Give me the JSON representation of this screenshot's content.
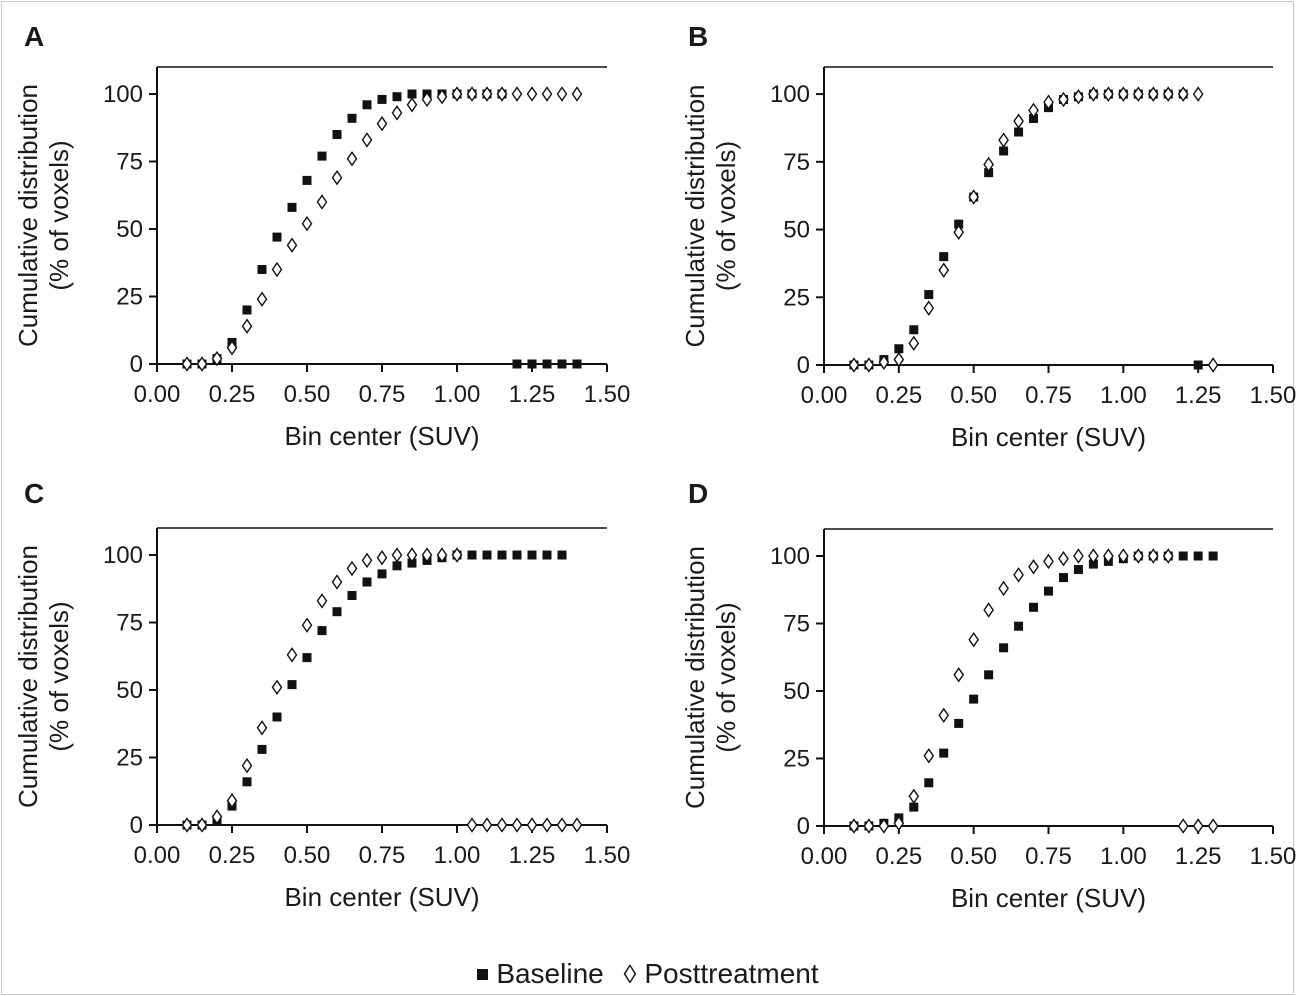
{
  "legend": {
    "baseline": "Baseline",
    "posttreatment": "Posttreatment",
    "baseline_marker": "filled-square",
    "posttreatment_marker": "open-diamond"
  },
  "chart_data": [
    {
      "panel": "A",
      "type": "scatter",
      "xlabel": "Bin center (SUV)",
      "ylabel": "Cumulative distribution\n(% of voxels)",
      "xlim": [
        0,
        1.5
      ],
      "ylim": [
        0,
        110
      ],
      "xticks": [
        "0.00",
        "0.25",
        "0.50",
        "0.75",
        "1.00",
        "1.25",
        "1.50"
      ],
      "yticks": [
        "0",
        "25",
        "50",
        "75",
        "100"
      ],
      "series": [
        {
          "name": "Baseline",
          "marker": "square",
          "x": [
            0.1,
            0.15,
            0.2,
            0.25,
            0.3,
            0.35,
            0.4,
            0.45,
            0.5,
            0.55,
            0.6,
            0.65,
            0.7,
            0.75,
            0.8,
            0.85,
            0.9,
            0.95,
            1.0,
            1.05,
            1.1,
            1.15,
            1.2,
            1.25,
            1.3,
            1.35,
            1.4
          ],
          "y": [
            0,
            0,
            2,
            8,
            20,
            35,
            47,
            58,
            68,
            77,
            85,
            91,
            96,
            98,
            99,
            100,
            100,
            100,
            100,
            100,
            100,
            100,
            0,
            0,
            0,
            0,
            0
          ]
        },
        {
          "name": "Posttreatment",
          "marker": "diamond",
          "x": [
            0.1,
            0.15,
            0.2,
            0.25,
            0.3,
            0.35,
            0.4,
            0.45,
            0.5,
            0.55,
            0.6,
            0.65,
            0.7,
            0.75,
            0.8,
            0.85,
            0.9,
            0.95,
            1.0,
            1.05,
            1.1,
            1.15,
            1.2,
            1.25,
            1.3,
            1.35,
            1.4
          ],
          "y": [
            0,
            0,
            2,
            6,
            14,
            24,
            35,
            44,
            52,
            60,
            69,
            76,
            83,
            89,
            93,
            96,
            98,
            99,
            100,
            100,
            100,
            100,
            100,
            100,
            100,
            100,
            100
          ]
        }
      ]
    },
    {
      "panel": "B",
      "type": "scatter",
      "xlabel": "Bin center (SUV)",
      "ylabel": "Cumulative distribution\n(% of voxels)",
      "xlim": [
        0,
        1.5
      ],
      "ylim": [
        0,
        110
      ],
      "xticks": [
        "0.00",
        "0.25",
        "0.50",
        "0.75",
        "1.00",
        "1.25",
        "1.50"
      ],
      "yticks": [
        "0",
        "25",
        "50",
        "75",
        "100"
      ],
      "series": [
        {
          "name": "Baseline",
          "marker": "square",
          "x": [
            0.1,
            0.15,
            0.2,
            0.25,
            0.3,
            0.35,
            0.4,
            0.45,
            0.5,
            0.55,
            0.6,
            0.65,
            0.7,
            0.75,
            0.8,
            0.85,
            0.9,
            0.95,
            1.0,
            1.05,
            1.1,
            1.15,
            1.2,
            1.25
          ],
          "y": [
            0,
            0,
            2,
            6,
            13,
            26,
            40,
            52,
            62,
            71,
            79,
            86,
            91,
            95,
            98,
            99,
            100,
            100,
            100,
            100,
            100,
            100,
            100,
            0
          ]
        },
        {
          "name": "Posttreatment",
          "marker": "diamond",
          "x": [
            0.1,
            0.15,
            0.2,
            0.25,
            0.3,
            0.35,
            0.4,
            0.45,
            0.5,
            0.55,
            0.6,
            0.65,
            0.7,
            0.75,
            0.8,
            0.85,
            0.9,
            0.95,
            1.0,
            1.05,
            1.1,
            1.15,
            1.2,
            1.25,
            1.3
          ],
          "y": [
            0,
            0,
            1,
            2,
            8,
            21,
            35,
            49,
            62,
            74,
            83,
            90,
            94,
            97,
            98,
            99,
            100,
            100,
            100,
            100,
            100,
            100,
            100,
            100,
            0
          ]
        }
      ]
    },
    {
      "panel": "C",
      "type": "scatter",
      "xlabel": "Bin center (SUV)",
      "ylabel": "Cumulative distribution\n(% of voxels)",
      "xlim": [
        0,
        1.5
      ],
      "ylim": [
        0,
        110
      ],
      "xticks": [
        "0.00",
        "0.25",
        "0.50",
        "0.75",
        "1.00",
        "1.25",
        "1.50"
      ],
      "yticks": [
        "0",
        "25",
        "50",
        "75",
        "100"
      ],
      "series": [
        {
          "name": "Baseline",
          "marker": "square",
          "x": [
            0.1,
            0.15,
            0.2,
            0.25,
            0.3,
            0.35,
            0.4,
            0.45,
            0.5,
            0.55,
            0.6,
            0.65,
            0.7,
            0.75,
            0.8,
            0.85,
            0.9,
            0.95,
            1.0,
            1.05,
            1.1,
            1.15,
            1.2,
            1.25,
            1.3,
            1.35
          ],
          "y": [
            0,
            0,
            2,
            7,
            16,
            28,
            40,
            52,
            62,
            72,
            79,
            85,
            90,
            93,
            96,
            97,
            98,
            99,
            100,
            100,
            100,
            100,
            100,
            100,
            100,
            100
          ]
        },
        {
          "name": "Posttreatment",
          "marker": "diamond",
          "x": [
            0.1,
            0.15,
            0.2,
            0.25,
            0.3,
            0.35,
            0.4,
            0.45,
            0.5,
            0.55,
            0.6,
            0.65,
            0.7,
            0.75,
            0.8,
            0.85,
            0.9,
            0.95,
            1.0,
            1.05,
            1.1,
            1.15,
            1.2,
            1.25,
            1.3,
            1.35,
            1.4
          ],
          "y": [
            0,
            0,
            3,
            9,
            22,
            36,
            51,
            63,
            74,
            83,
            90,
            95,
            98,
            99,
            100,
            100,
            100,
            100,
            100,
            0,
            0,
            0,
            0,
            0,
            0,
            0,
            0
          ]
        }
      ]
    },
    {
      "panel": "D",
      "type": "scatter",
      "xlabel": "Bin center (SUV)",
      "ylabel": "Cumulative distribution\n(% of voxels)",
      "xlim": [
        0,
        1.5
      ],
      "ylim": [
        0,
        110
      ],
      "xticks": [
        "0.00",
        "0.25",
        "0.50",
        "0.75",
        "1.00",
        "1.25",
        "1.50"
      ],
      "yticks": [
        "0",
        "25",
        "50",
        "75",
        "100"
      ],
      "series": [
        {
          "name": "Baseline",
          "marker": "square",
          "x": [
            0.1,
            0.15,
            0.2,
            0.25,
            0.3,
            0.35,
            0.4,
            0.45,
            0.5,
            0.55,
            0.6,
            0.65,
            0.7,
            0.75,
            0.8,
            0.85,
            0.9,
            0.95,
            1.0,
            1.05,
            1.1,
            1.15,
            1.2,
            1.25,
            1.3
          ],
          "y": [
            0,
            0,
            1,
            3,
            7,
            16,
            27,
            38,
            47,
            56,
            66,
            74,
            81,
            87,
            92,
            95,
            97,
            98,
            99,
            100,
            100,
            100,
            100,
            100,
            100
          ]
        },
        {
          "name": "Posttreatment",
          "marker": "diamond",
          "x": [
            0.1,
            0.15,
            0.2,
            0.25,
            0.3,
            0.35,
            0.4,
            0.45,
            0.5,
            0.55,
            0.6,
            0.65,
            0.7,
            0.75,
            0.8,
            0.85,
            0.9,
            0.95,
            1.0,
            1.05,
            1.1,
            1.15,
            1.2,
            1.25,
            1.3
          ],
          "y": [
            0,
            0,
            0,
            1,
            11,
            26,
            41,
            56,
            69,
            80,
            88,
            93,
            96,
            98,
            99,
            100,
            100,
            100,
            100,
            100,
            100,
            100,
            0,
            0,
            0
          ]
        }
      ]
    }
  ]
}
